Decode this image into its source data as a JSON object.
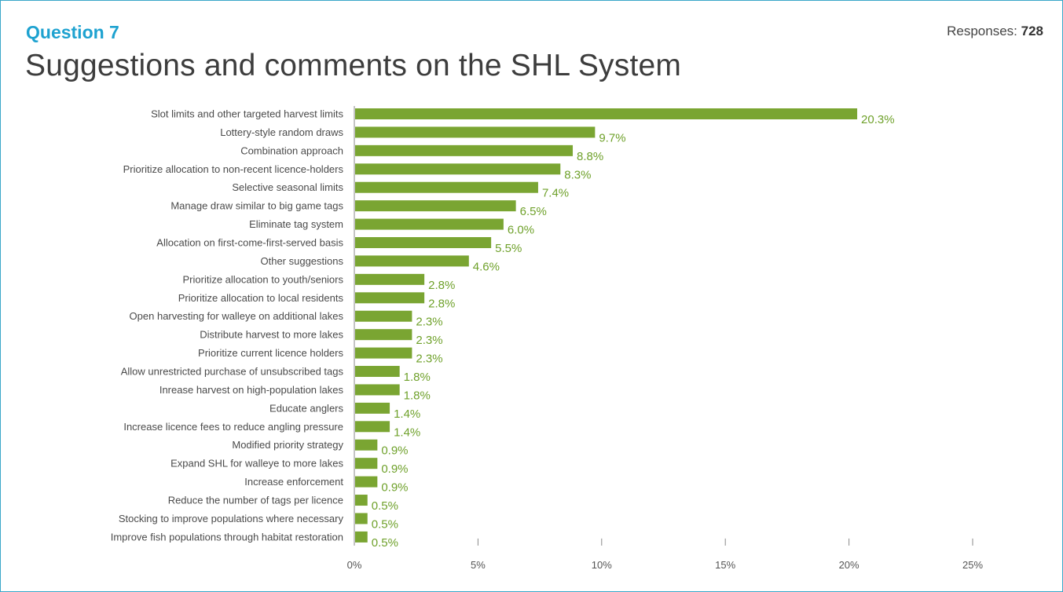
{
  "header": {
    "question": "Question 7",
    "title": "Suggestions and comments on the SHL System",
    "responses_label": "Responses:",
    "responses_count": "728"
  },
  "colors": {
    "bar": "#7aa532",
    "value_label": "#6fa12b",
    "accent": "#1ea2d0"
  },
  "chart_data": {
    "type": "bar",
    "orientation": "horizontal",
    "categories": [
      "Slot limits and other targeted harvest limits",
      "Lottery-style random draws",
      "Combination approach",
      "Prioritize allocation to non-recent licence-holders",
      "Selective seasonal limits",
      "Manage draw similar to big game tags",
      "Eliminate tag system",
      "Allocation on first-come-first-served basis",
      "Other suggestions",
      "Prioritize allocation to youth/seniors",
      "Prioritize allocation to local residents",
      "Open harvesting for walleye on additional lakes",
      "Distribute harvest to more lakes",
      "Prioritize current licence holders",
      "Allow unrestricted purchase of unsubscribed tags",
      "Inrease harvest on high-population lakes",
      "Educate anglers",
      "Increase licence fees to reduce angling pressure",
      "Modified priority strategy",
      "Expand SHL for walleye to more lakes",
      "Increase enforcement",
      "Reduce the number of tags per licence",
      "Stocking to improve populations where necessary",
      "Improve fish populations through habitat restoration"
    ],
    "values": [
      20.3,
      9.7,
      8.8,
      8.3,
      7.4,
      6.5,
      6.0,
      5.5,
      4.6,
      2.8,
      2.8,
      2.3,
      2.3,
      2.3,
      1.8,
      1.8,
      1.4,
      1.4,
      0.9,
      0.9,
      0.9,
      0.5,
      0.5,
      0.5
    ],
    "value_labels": [
      "20.3%",
      "9.7%",
      "8.8%",
      "8.3%",
      "7.4%",
      "6.5%",
      "6.0%",
      "5.5%",
      "4.6%",
      "2.8%",
      "2.8%",
      "2.3%",
      "2.3%",
      "2.3%",
      "1.8%",
      "1.8%",
      "1.4%",
      "1.4%",
      "0.9%",
      "0.9%",
      "0.9%",
      "0.5%",
      "0.5%",
      "0.5%"
    ],
    "xlim": [
      0,
      25
    ],
    "xticks": [
      0,
      5,
      10,
      15,
      20,
      25
    ],
    "xtick_labels": [
      "0%",
      "5%",
      "10%",
      "15%",
      "20%",
      "25%"
    ],
    "grid": false
  }
}
